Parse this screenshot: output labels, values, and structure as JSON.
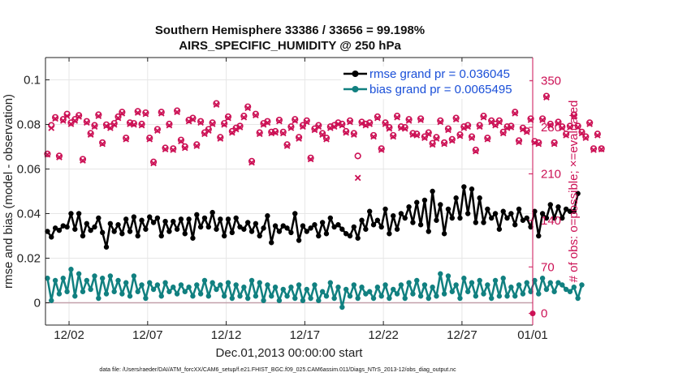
{
  "chart_data": {
    "type": "line",
    "title": "Southern Hemisphere 33386 / 33656 = 99.198%",
    "subtitle": "AIRS_SPECIFIC_HUMIDITY @ 250 hPa",
    "xlabel": "Dec.01,2013 00:00:00 start",
    "ylabel_left": "rmse and bias (model - observation)",
    "ylabel_right": "# of obs: o=possible; ×=evaluated",
    "xlim": [
      0,
      31
    ],
    "ylim_left": [
      -0.01,
      0.11
    ],
    "ylim_right": [
      -17.5,
      385
    ],
    "x_ticks": [
      {
        "label": "12/02",
        "value": 1.5
      },
      {
        "label": "12/07",
        "value": 6.5
      },
      {
        "label": "12/12",
        "value": 11.5
      },
      {
        "label": "12/17",
        "value": 16.5
      },
      {
        "label": "12/22",
        "value": 21.5
      },
      {
        "label": "12/27",
        "value": 26.5
      },
      {
        "label": "01/01",
        "value": 31
      }
    ],
    "y_ticks_left": [
      {
        "label": "0",
        "value": 0
      },
      {
        "label": "0.02",
        "value": 0.02
      },
      {
        "label": "0.04",
        "value": 0.04
      },
      {
        "label": "0.06",
        "value": 0.06
      },
      {
        "label": "0.08",
        "value": 0.08
      },
      {
        "label": "0.1",
        "value": 0.1
      }
    ],
    "y_ticks_right": [
      {
        "label": "0",
        "value": 0
      },
      {
        "label": "70",
        "value": 70
      },
      {
        "label": "140",
        "value": 140
      },
      {
        "label": "210",
        "value": 210
      },
      {
        "label": "280",
        "value": 280
      },
      {
        "label": "350",
        "value": 350
      }
    ],
    "legend": [
      {
        "name": "rmse grand pr = 0.036045",
        "color": "#000000"
      },
      {
        "name": "bias grand pr = 0.0065495",
        "color": "#118080"
      }
    ],
    "series": [
      {
        "name": "rmse",
        "axis": "left",
        "color": "#000000",
        "x_start": 0.125,
        "x_step": 0.25,
        "values": [
          0.032,
          0.0295,
          0.0335,
          0.0325,
          0.0345,
          0.034,
          0.04,
          0.033,
          0.04,
          0.03,
          0.0355,
          0.0325,
          0.034,
          0.038,
          0.0315,
          0.025,
          0.0355,
          0.032,
          0.035,
          0.031,
          0.0375,
          0.032,
          0.0385,
          0.03,
          0.037,
          0.033,
          0.0385,
          0.036,
          0.038,
          0.03,
          0.0365,
          0.032,
          0.0365,
          0.033,
          0.0375,
          0.031,
          0.0375,
          0.029,
          0.0395,
          0.034,
          0.038,
          0.034,
          0.0405,
          0.033,
          0.0375,
          0.03,
          0.0375,
          0.0315,
          0.038,
          0.034,
          0.033,
          0.036,
          0.032,
          0.0355,
          0.03,
          0.0335,
          0.039,
          0.027,
          0.0345,
          0.032,
          0.0345,
          0.0335,
          0.0315,
          0.04,
          0.028,
          0.0345,
          0.032,
          0.0335,
          0.035,
          0.03,
          0.036,
          0.031,
          0.038,
          0.034,
          0.035,
          0.033,
          0.031,
          0.03,
          0.034,
          0.029,
          0.037,
          0.033,
          0.041,
          0.035,
          0.037,
          0.034,
          0.042,
          0.031,
          0.039,
          0.033,
          0.04,
          0.038,
          0.043,
          0.036,
          0.045,
          0.035,
          0.046,
          0.032,
          0.05,
          0.037,
          0.044,
          0.031,
          0.042,
          0.038,
          0.047,
          0.038,
          0.052,
          0.04,
          0.051,
          0.036,
          0.047,
          0.036,
          0.042,
          0.038,
          0.04,
          0.033,
          0.041,
          0.038,
          0.04,
          0.035,
          0.042,
          0.037,
          0.038,
          0.034,
          0.041,
          0.03,
          0.04,
          0.038,
          0.044,
          0.038,
          0.043,
          0.038,
          0.042,
          0.041,
          0.041,
          0.049
        ]
      },
      {
        "name": "bias",
        "axis": "left",
        "color": "#118080",
        "x_start": 0.125,
        "x_step": 0.25,
        "values": [
          0.011,
          0.001,
          0.01,
          0.004,
          0.011,
          0.005,
          0.015,
          0.003,
          0.013,
          0.005,
          0.01,
          0.006,
          0.012,
          0.002,
          0.011,
          0.004,
          0.012,
          0.005,
          0.01,
          0.004,
          0.009,
          0.003,
          0.012,
          0.005,
          0.008,
          0.002,
          0.009,
          0.006,
          0.008,
          0.003,
          0.009,
          0.005,
          0.007,
          0.004,
          0.008,
          0.005,
          0.007,
          0.003,
          0.008,
          0.004,
          0.01,
          0.003,
          0.009,
          0.006,
          0.008,
          0.003,
          0.009,
          0.002,
          0.008,
          0.003,
          0.007,
          0.002,
          0.01,
          0.003,
          0.009,
          0.001,
          0.008,
          0.003,
          0.007,
          0.001,
          0.006,
          0.003,
          0.007,
          0.002,
          0.008,
          0.001,
          0.006,
          0.002,
          0.008,
          0.001,
          0.005,
          0.003,
          0.009,
          0.002,
          0.007,
          -0.002,
          0.006,
          0.003,
          0.008,
          0.002,
          0.007,
          0.004,
          0.005,
          0.002,
          0.007,
          0.003,
          0.008,
          0.002,
          0.006,
          0.004,
          0.008,
          0.002,
          0.009,
          0.004,
          0.01,
          0.003,
          0.008,
          0.002,
          0.007,
          0.003,
          0.013,
          0.004,
          0.012,
          0.005,
          0.008,
          0.002,
          0.011,
          0.005,
          0.009,
          0.003,
          0.01,
          0.004,
          0.008,
          0.002,
          0.01,
          0.003,
          0.011,
          0.003,
          0.007,
          0.003,
          0.008,
          0.004,
          0.009,
          0.005,
          0.01,
          0.004,
          0.011,
          0.006,
          0.009,
          0.005,
          0.009,
          0.008,
          0.006,
          0.005,
          0.007,
          0.002,
          0.008
        ]
      },
      {
        "name": "# obs possible",
        "axis": "right",
        "color": "#cc1155",
        "marker": "o",
        "x_start": 0.125,
        "x_step": 0.25,
        "values": [
          240,
          283,
          295,
          237,
          292,
          300,
          287,
          292,
          298,
          232,
          289,
          271,
          283,
          299,
          257,
          284,
          281,
          286,
          296,
          303,
          264,
          287,
          286,
          304,
          285,
          302,
          264,
          228,
          277,
          303,
          249,
          285,
          248,
          305,
          261,
          251,
          291,
          294,
          254,
          289,
          272,
          277,
          287,
          316,
          265,
          286,
          296,
          274,
          279,
          282,
          297,
          311,
          229,
          300,
          272,
          286,
          289,
          273,
          274,
          291,
          273,
          254,
          281,
          292,
          265,
          283,
          290,
          234,
          278,
          283,
          271,
          264,
          281,
          283,
          287,
          285,
          274,
          290,
          271,
          237,
          288,
          285,
          287,
          268,
          296,
          248,
          287,
          280,
          268,
          297,
          281,
          280,
          292,
          271,
          270,
          293,
          266,
          272,
          256,
          265,
          290,
          257,
          278,
          262,
          294,
          269,
          281,
          283,
          266,
          246,
          283,
          297,
          264,
          290,
          285,
          290,
          273,
          281,
          282,
          303,
          260,
          279,
          275,
          293,
          259,
          257,
          293,
          327,
          285,
          257,
          288,
          281,
          270,
          282,
          299,
          282,
          273,
          266,
          287,
          248,
          270,
          248
        ]
      },
      {
        "name": "# obs evaluated",
        "axis": "right",
        "color": "#cc1155",
        "marker": "x",
        "x_start": 0.125,
        "x_step": 0.25,
        "values": [
          239,
          279,
          293,
          235,
          290,
          297,
          285,
          290,
          296,
          230,
          287,
          269,
          281,
          297,
          255,
          282,
          279,
          284,
          294,
          301,
          262,
          285,
          284,
          302,
          283,
          300,
          262,
          226,
          275,
          301,
          247,
          283,
          246,
          303,
          259,
          249,
          289,
          292,
          252,
          287,
          270,
          275,
          285,
          314,
          263,
          284,
          294,
          272,
          277,
          280,
          295,
          309,
          227,
          298,
          270,
          284,
          287,
          271,
          272,
          289,
          271,
          252,
          279,
          290,
          263,
          281,
          288,
          232,
          276,
          281,
          269,
          262,
          279,
          281,
          285,
          283,
          272,
          288,
          269,
          204,
          286,
          283,
          285,
          266,
          294,
          246,
          285,
          278,
          266,
          295,
          279,
          278,
          290,
          269,
          268,
          291,
          264,
          270,
          254,
          263,
          288,
          255,
          276,
          260,
          292,
          267,
          279,
          281,
          264,
          244,
          281,
          295,
          262,
          288,
          283,
          288,
          271,
          279,
          280,
          301,
          258,
          277,
          273,
          291,
          257,
          255,
          291,
          325,
          283,
          255,
          286,
          279,
          268,
          280,
          297,
          280,
          271,
          264,
          285,
          246,
          268,
          247
        ]
      }
    ]
  },
  "footer": {
    "data_file": "data file: /Users/raeder/DAI/ATM_forcXX/CAM6_setup/f.e21.FHIST_BGC.f09_025.CAM6assim.011/Diags_NTrS_2013-12/obs_diag_output.nc"
  }
}
